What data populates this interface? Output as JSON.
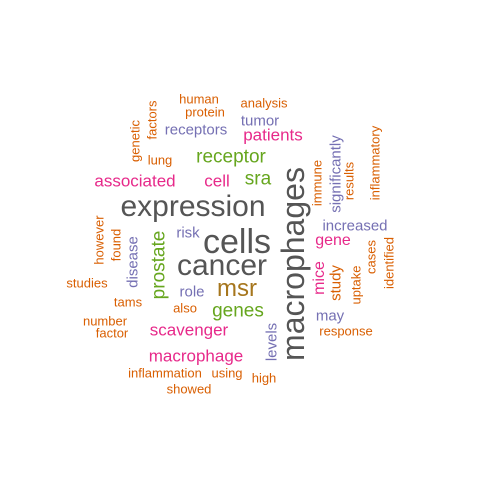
{
  "palette": {
    "orange": "#d95f02",
    "purple": "#7570b3",
    "magenta": "#e7298a",
    "green": "#66a61e",
    "olive": "#a6761d",
    "gray": "#555555"
  },
  "words": [
    {
      "text": "cells",
      "color": "gray"
    },
    {
      "text": "cancer",
      "color": "gray"
    },
    {
      "text": "expression",
      "color": "gray"
    },
    {
      "text": "macrophages",
      "color": "gray"
    },
    {
      "text": "msr",
      "color": "olive"
    },
    {
      "text": "genes",
      "color": "green"
    },
    {
      "text": "prostate",
      "color": "green"
    },
    {
      "text": "receptor",
      "color": "green"
    },
    {
      "text": "sra",
      "color": "green"
    },
    {
      "text": "associated",
      "color": "magenta"
    },
    {
      "text": "cell",
      "color": "magenta"
    },
    {
      "text": "patients",
      "color": "magenta"
    },
    {
      "text": "scavenger",
      "color": "magenta"
    },
    {
      "text": "macrophage",
      "color": "magenta"
    },
    {
      "text": "gene",
      "color": "magenta"
    },
    {
      "text": "mice",
      "color": "magenta"
    },
    {
      "text": "increased",
      "color": "purple"
    },
    {
      "text": "receptors",
      "color": "purple"
    },
    {
      "text": "tumor",
      "color": "purple"
    },
    {
      "text": "role",
      "color": "purple"
    },
    {
      "text": "risk",
      "color": "purple"
    },
    {
      "text": "may",
      "color": "purple"
    },
    {
      "text": "disease",
      "color": "purple"
    },
    {
      "text": "levels",
      "color": "purple"
    },
    {
      "text": "significantly",
      "color": "purple"
    },
    {
      "text": "study",
      "color": "orange"
    },
    {
      "text": "human",
      "color": "orange"
    },
    {
      "text": "protein",
      "color": "orange"
    },
    {
      "text": "analysis",
      "color": "orange"
    },
    {
      "text": "lung",
      "color": "orange"
    },
    {
      "text": "studies",
      "color": "orange"
    },
    {
      "text": "tams",
      "color": "orange"
    },
    {
      "text": "also",
      "color": "orange"
    },
    {
      "text": "number",
      "color": "orange"
    },
    {
      "text": "factor",
      "color": "orange"
    },
    {
      "text": "response",
      "color": "orange"
    },
    {
      "text": "inflammation",
      "color": "orange"
    },
    {
      "text": "using",
      "color": "orange"
    },
    {
      "text": "high",
      "color": "orange"
    },
    {
      "text": "showed",
      "color": "orange"
    },
    {
      "text": "genetic",
      "color": "orange"
    },
    {
      "text": "factors",
      "color": "orange"
    },
    {
      "text": "however",
      "color": "orange"
    },
    {
      "text": "found",
      "color": "orange"
    },
    {
      "text": "immune",
      "color": "orange"
    },
    {
      "text": "results",
      "color": "orange"
    },
    {
      "text": "inflammatory",
      "color": "orange"
    },
    {
      "text": "uptake",
      "color": "orange"
    },
    {
      "text": "cases",
      "color": "orange"
    },
    {
      "text": "identified",
      "color": "orange"
    }
  ]
}
